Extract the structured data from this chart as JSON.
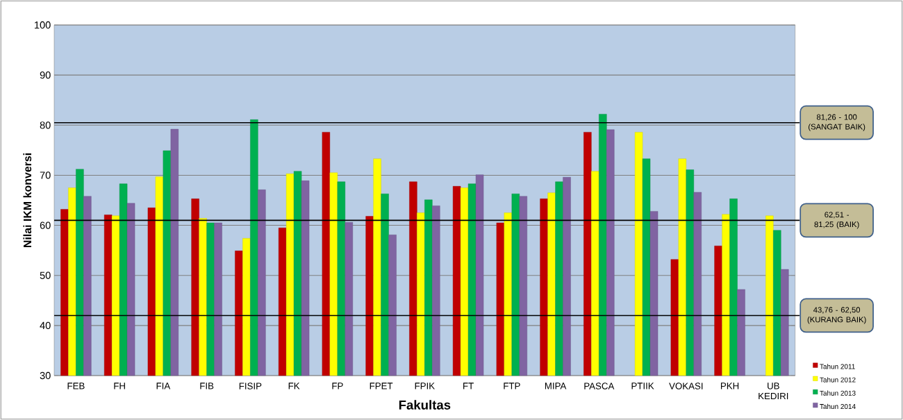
{
  "chart_data": {
    "type": "bar",
    "xlabel": "Fakultas",
    "ylabel": "Nilai IKM konversi",
    "categories": [
      "FEB",
      "FH",
      "FIA",
      "FIB",
      "FISIP",
      "FK",
      "FP",
      "FPET",
      "FPIK",
      "FT",
      "FTP",
      "MIPA",
      "PASCA",
      "PTIIK",
      "VOKASI",
      "PKH",
      "UB KEDIRI"
    ],
    "series": [
      {
        "name": "Tahun 2011",
        "color": "#c00000",
        "values": [
          63.2,
          62.1,
          63.5,
          65.3,
          54.9,
          59.5,
          78.6,
          61.8,
          68.7,
          67.8,
          60.5,
          65.3,
          78.6,
          null,
          53.2,
          55.9,
          null
        ]
      },
      {
        "name": "Tahun 2012",
        "color": "#ffff00",
        "values": [
          67.5,
          61.9,
          69.7,
          61.4,
          57.4,
          70.3,
          70.5,
          73.3,
          62.5,
          67.5,
          62.5,
          66.5,
          70.8,
          78.6,
          73.3,
          62.2,
          61.9
        ]
      },
      {
        "name": "Tahun 2013",
        "color": "#00b050",
        "values": [
          71.2,
          68.3,
          74.9,
          60.5,
          81.1,
          70.8,
          68.7,
          66.3,
          65.1,
          68.3,
          66.3,
          68.7,
          82.2,
          73.3,
          71.1,
          65.3,
          59.0
        ]
      },
      {
        "name": "Tahun 2014",
        "color": "#8064a2",
        "values": [
          65.8,
          64.4,
          79.2,
          60.5,
          67.1,
          68.9,
          60.6,
          58.1,
          63.9,
          70.1,
          65.8,
          69.6,
          79.1,
          62.8,
          66.6,
          47.2,
          51.2
        ]
      }
    ],
    "ylim": [
      30,
      100
    ],
    "yticks": [
      30,
      40,
      50,
      60,
      70,
      80,
      90,
      100
    ],
    "grid": "y",
    "legend": "bottom right",
    "ref_lines": [
      {
        "axis": "y",
        "value": 80.5,
        "label": "81,26 - 100 (SANGAT BAIK)",
        "color": "#000000"
      },
      {
        "axis": "y",
        "value": 61,
        "label": "62,51 - 81,25 (BAIK)",
        "color": "#000000"
      },
      {
        "axis": "y",
        "value": 42,
        "label": "43,76 - 62,50 (KURANG BAIK)",
        "color": "#000000"
      }
    ]
  }
}
